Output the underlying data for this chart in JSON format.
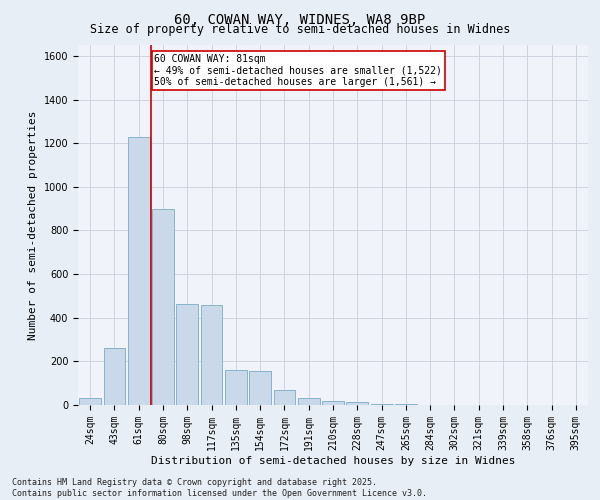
{
  "title": "60, COWAN WAY, WIDNES, WA8 9BP",
  "subtitle": "Size of property relative to semi-detached houses in Widnes",
  "xlabel": "Distribution of semi-detached houses by size in Widnes",
  "ylabel": "Number of semi-detached properties",
  "categories": [
    "24sqm",
    "43sqm",
    "61sqm",
    "80sqm",
    "98sqm",
    "117sqm",
    "135sqm",
    "154sqm",
    "172sqm",
    "191sqm",
    "210sqm",
    "228sqm",
    "247sqm",
    "265sqm",
    "284sqm",
    "302sqm",
    "321sqm",
    "339sqm",
    "358sqm",
    "376sqm",
    "395sqm"
  ],
  "values": [
    30,
    260,
    1230,
    900,
    465,
    460,
    160,
    155,
    70,
    30,
    20,
    15,
    5,
    3,
    2,
    2,
    1,
    1,
    1,
    1,
    1
  ],
  "bar_color": "#c9d9ea",
  "bar_edge_color": "#7aaac8",
  "vline_x_index": 3,
  "vline_color": "#cc0000",
  "annotation_text": "60 COWAN WAY: 81sqm\n← 49% of semi-detached houses are smaller (1,522)\n50% of semi-detached houses are larger (1,561) →",
  "annotation_box_color": "#ffffff",
  "annotation_box_edge_color": "#cc0000",
  "ylim": [
    0,
    1650
  ],
  "yticks": [
    0,
    200,
    400,
    600,
    800,
    1000,
    1200,
    1400,
    1600
  ],
  "footer_line1": "Contains HM Land Registry data © Crown copyright and database right 2025.",
  "footer_line2": "Contains public sector information licensed under the Open Government Licence v3.0.",
  "bg_color": "#e8eef5",
  "plot_bg_color": "#f0f4fa",
  "grid_color": "#c8d0dc",
  "title_fontsize": 10,
  "subtitle_fontsize": 8.5,
  "axis_label_fontsize": 8,
  "tick_fontsize": 7,
  "annotation_fontsize": 7,
  "footer_fontsize": 6
}
